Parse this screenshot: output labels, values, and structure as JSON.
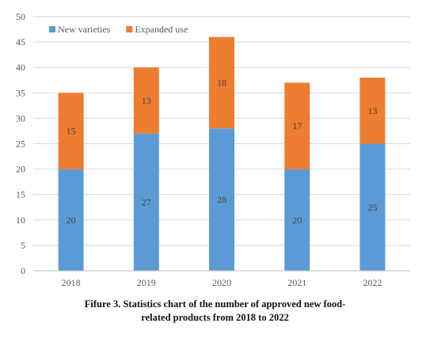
{
  "colors": {
    "new": "#5b9bd5",
    "expanded": "#ed7d31",
    "grid": "#d9d9d9",
    "axis": "#595959"
  },
  "caption": {
    "line1": "Fifure 3. Statistics chart of the number of approved new food-",
    "line2": "related products from 2018 to 2022"
  },
  "chart_data": {
    "type": "bar",
    "stacked": true,
    "categories": [
      "2018",
      "2019",
      "2020",
      "2021",
      "2022"
    ],
    "series": [
      {
        "name": "New varieties",
        "values": [
          20,
          27,
          28,
          20,
          25
        ]
      },
      {
        "name": "Expanded use",
        "values": [
          15,
          13,
          18,
          17,
          13
        ]
      }
    ],
    "ylim": [
      0,
      50
    ],
    "yticks": [
      0,
      5,
      10,
      15,
      20,
      25,
      30,
      35,
      40,
      45,
      50
    ],
    "grid": true,
    "legend": "top-left",
    "data_labels": true
  }
}
